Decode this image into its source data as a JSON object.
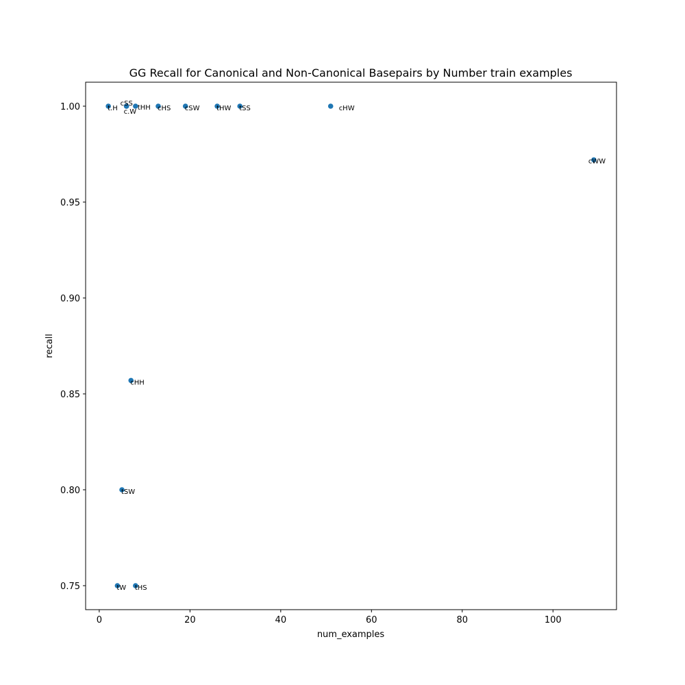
{
  "chart_data": {
    "type": "scatter",
    "title": "GG Recall for Canonical and Non-Canonical Basepairs by Number train examples",
    "xlabel": "num_examples",
    "ylabel": "recall",
    "xlim": [
      -3,
      114
    ],
    "ylim": [
      0.7375,
      1.0125
    ],
    "xticks": [
      0,
      20,
      40,
      60,
      80,
      100
    ],
    "yticks": [
      0.75,
      0.8,
      0.85,
      0.9,
      0.95,
      1.0
    ],
    "xtick_labels": [
      "0",
      "20",
      "40",
      "60",
      "80",
      "100"
    ],
    "ytick_labels": [
      "0.75",
      "0.80",
      "0.85",
      "0.90",
      "0.95",
      "1.00"
    ],
    "grid": false,
    "point_color": "#1f77b4",
    "points": [
      {
        "x": 2,
        "y": 1.0,
        "label": "t.H"
      },
      {
        "x": 6,
        "y": 1.0,
        "label": "cSS"
      },
      {
        "x": 6,
        "y": 1.0,
        "label": "c.W"
      },
      {
        "x": 8,
        "y": 1.0,
        "label": "tHH"
      },
      {
        "x": 13,
        "y": 1.0,
        "label": "cHS"
      },
      {
        "x": 19,
        "y": 1.0,
        "label": "cSW"
      },
      {
        "x": 26,
        "y": 1.0,
        "label": "tHW"
      },
      {
        "x": 31,
        "y": 1.0,
        "label": "tSS"
      },
      {
        "x": 51,
        "y": 1.0,
        "label": "cHW"
      },
      {
        "x": 109,
        "y": 0.972,
        "label": "cWW"
      },
      {
        "x": 7,
        "y": 0.857,
        "label": "cHH"
      },
      {
        "x": 5,
        "y": 0.8,
        "label": "tSW"
      },
      {
        "x": 4,
        "y": 0.75,
        "label": "tW"
      },
      {
        "x": 8,
        "y": 0.75,
        "label": "tHS"
      }
    ]
  }
}
